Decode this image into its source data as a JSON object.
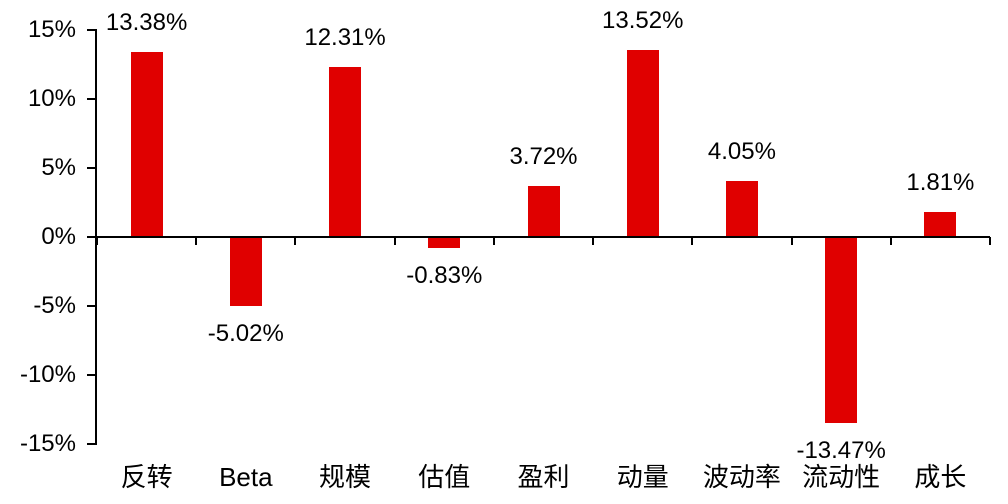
{
  "chart_data": {
    "type": "bar",
    "title": "",
    "xlabel": "",
    "ylabel": "",
    "categories": [
      "反转",
      "Beta",
      "规模",
      "估值",
      "盈利",
      "动量",
      "波动率",
      "流动性",
      "成长"
    ],
    "values": [
      13.38,
      -5.02,
      12.31,
      -0.83,
      3.72,
      13.52,
      4.05,
      -13.47,
      1.81
    ],
    "data_labels": [
      "13.38%",
      "-5.02%",
      "12.31%",
      "-0.83%",
      "3.72%",
      "13.52%",
      "4.05%",
      "-13.47%",
      "1.81%"
    ],
    "y_ticks": [
      {
        "value": 15,
        "label": "15%"
      },
      {
        "value": 10,
        "label": "10%"
      },
      {
        "value": 5,
        "label": "5%"
      },
      {
        "value": 0,
        "label": "0%"
      },
      {
        "value": -5,
        "label": "-5%"
      },
      {
        "value": -10,
        "label": "-10%"
      },
      {
        "value": -15,
        "label": "-15%"
      }
    ],
    "ylim": [
      -15,
      15
    ],
    "grid": false,
    "legend": "none",
    "bar_color": "#e00000",
    "axis_color": "#000000",
    "text_color": "#000000",
    "background_color": "#ffffff"
  }
}
